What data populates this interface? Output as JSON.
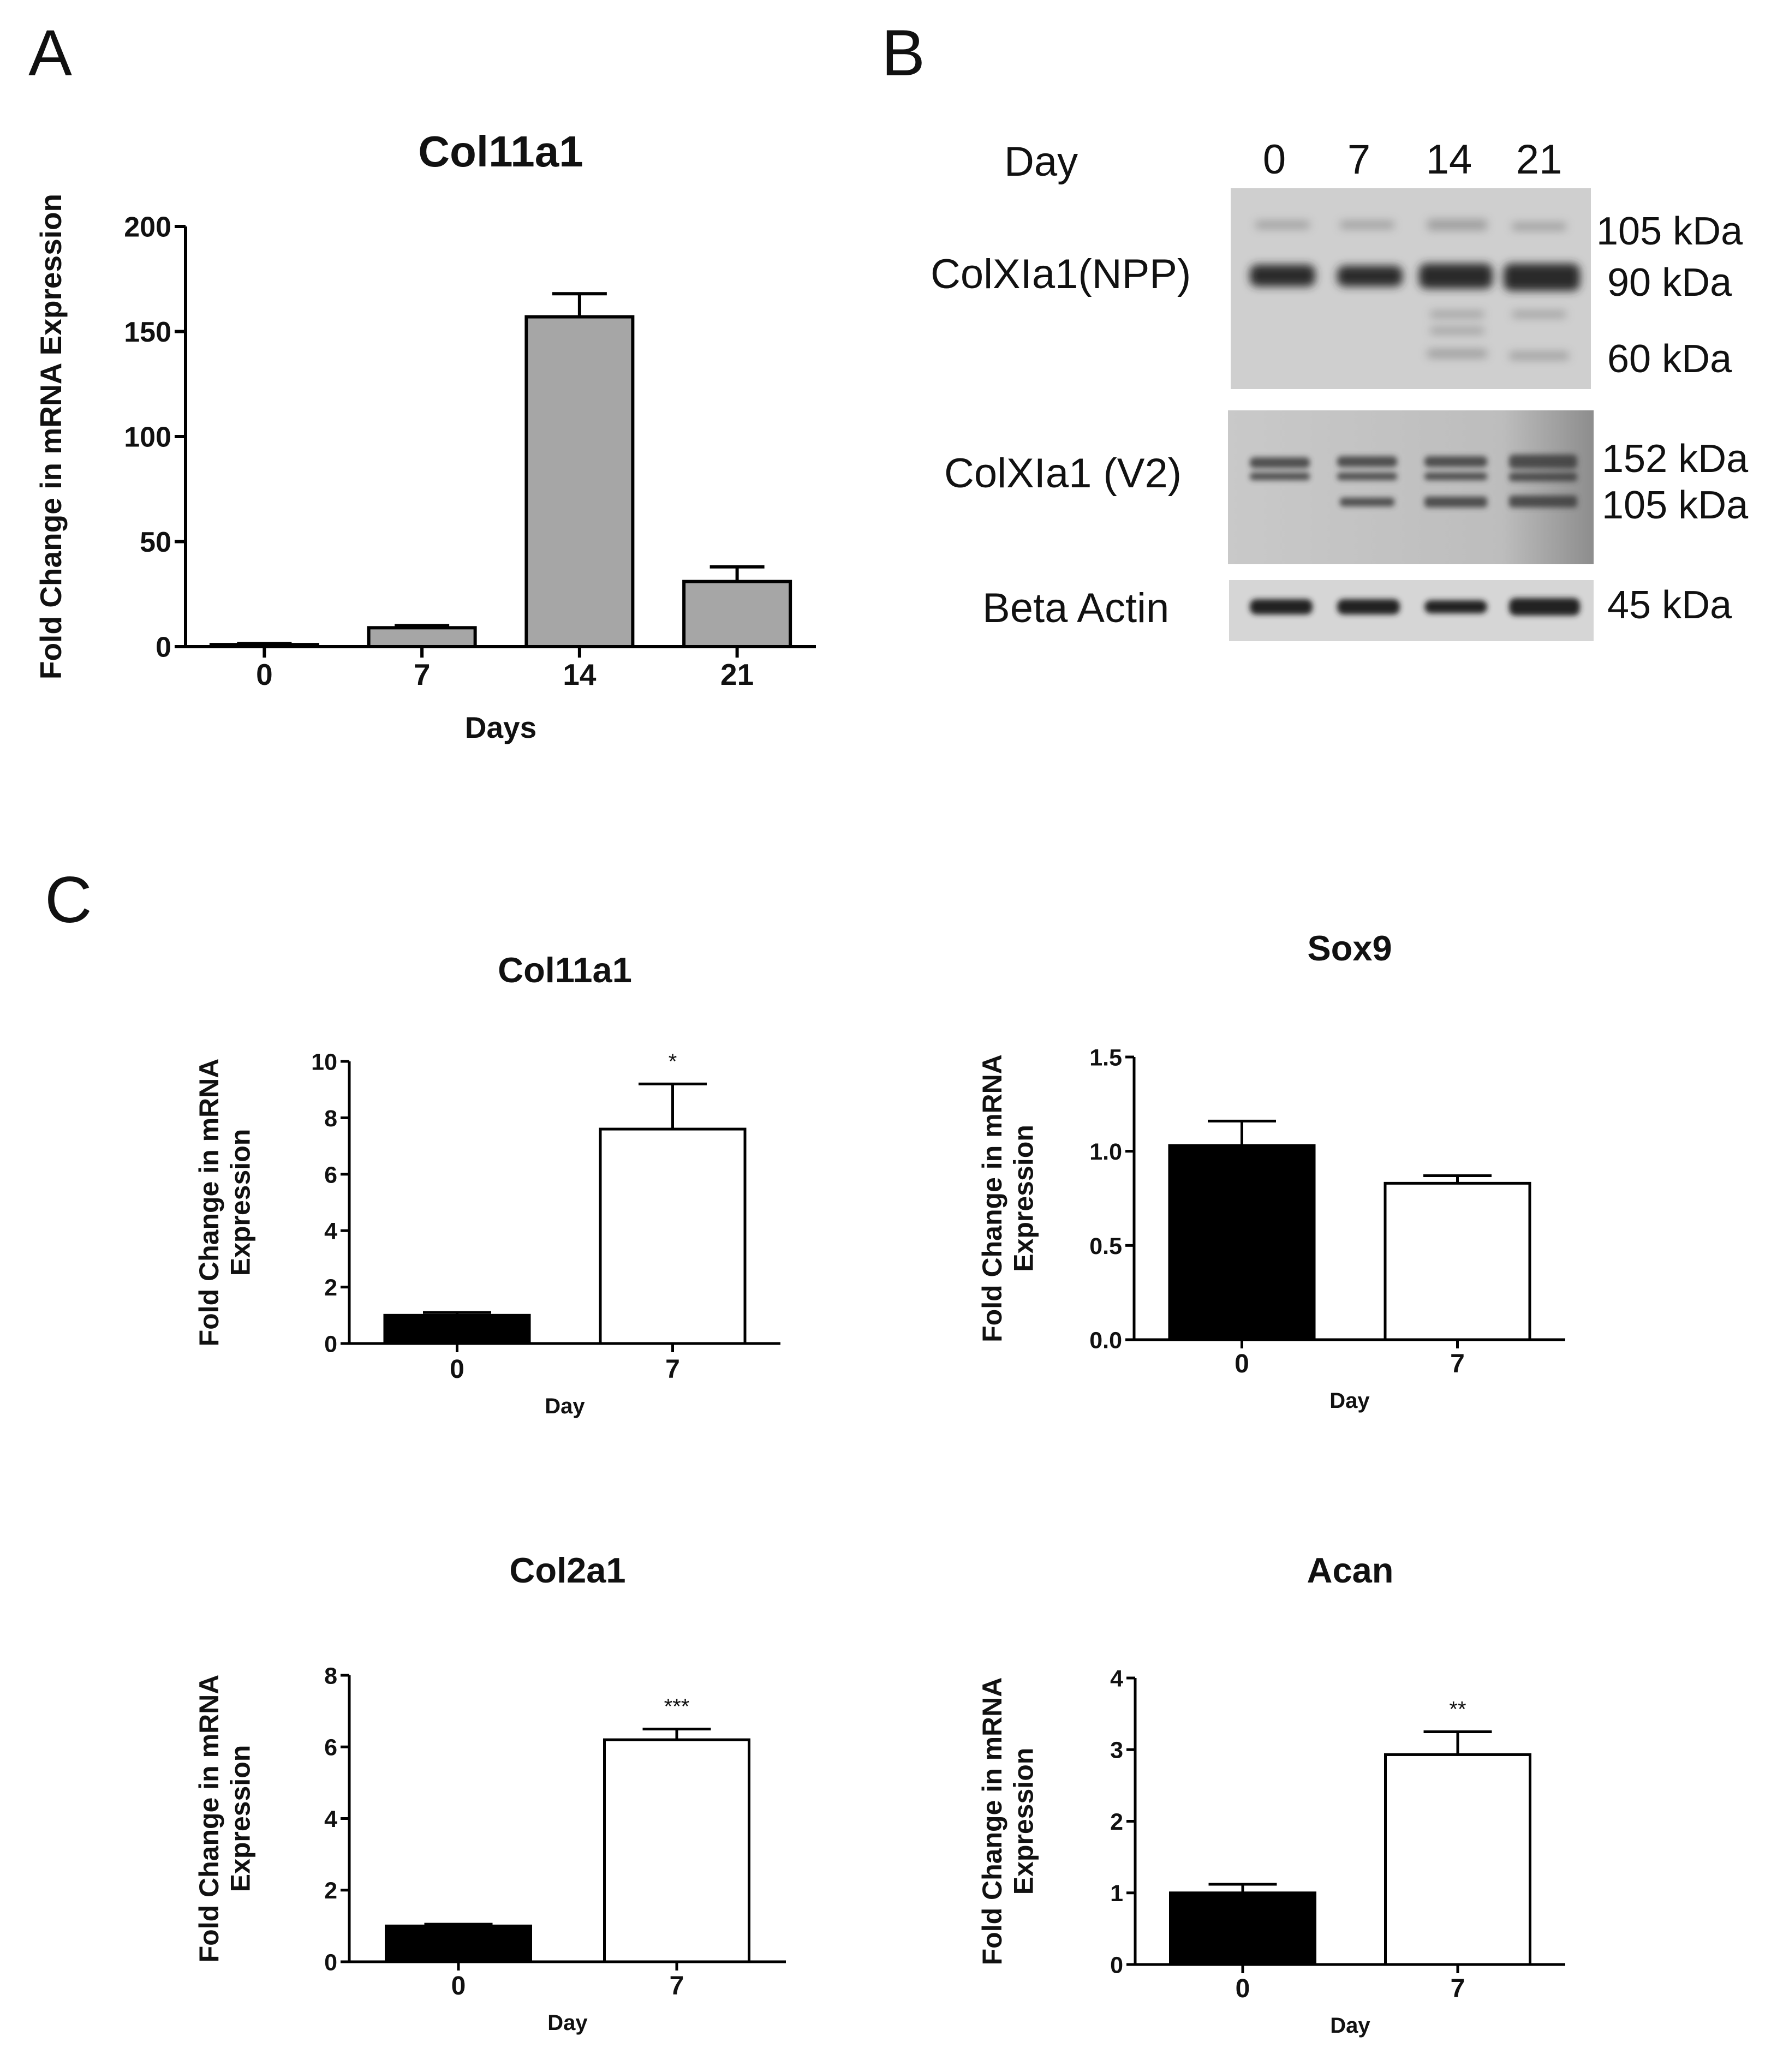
{
  "panels": {
    "A": {
      "letter": "A"
    },
    "B": {
      "letter": "B"
    },
    "C": {
      "letter": "C"
    }
  },
  "blot": {
    "day_header": "Day",
    "lanes": [
      "0",
      "7",
      "14",
      "21"
    ],
    "rows": [
      {
        "label": "ColXIa1(NPP)",
        "markers": [
          "105 kDa",
          "90 kDa",
          "60 kDa"
        ]
      },
      {
        "label": "ColXIa1 (V2)",
        "markers": [
          "152 kDa",
          "105 kDa"
        ]
      },
      {
        "label": "Beta Actin",
        "markers": [
          "45 kDa"
        ]
      }
    ]
  },
  "chart_data": [
    {
      "id": "A-col11a1",
      "type": "bar",
      "title": "Col11a1",
      "xlabel": "Days",
      "ylabel": "Fold Change in mRNA Expression",
      "categories": [
        "0",
        "7",
        "14",
        "21"
      ],
      "values": [
        1,
        9,
        157,
        31
      ],
      "errors": [
        0.5,
        1,
        11,
        7
      ],
      "ylim": [
        0,
        200
      ],
      "yticks": [
        "0",
        "50",
        "100",
        "150",
        "200"
      ],
      "bar_colors": [
        "#a6a6a6",
        "#a6a6a6",
        "#a6a6a6",
        "#a6a6a6"
      ],
      "annotations": [
        "",
        "",
        "",
        ""
      ]
    },
    {
      "id": "C-col11a1",
      "type": "bar",
      "title": "Col11a1",
      "xlabel": "Day",
      "ylabel": [
        "Fold Change in mRNA",
        "Expression"
      ],
      "categories": [
        "0",
        "7"
      ],
      "values": [
        1.0,
        7.6
      ],
      "errors": [
        0.1,
        1.6
      ],
      "ylim": [
        0,
        10
      ],
      "yticks": [
        "0",
        "2",
        "4",
        "6",
        "8",
        "10"
      ],
      "bar_colors": [
        "#000000",
        "#ffffff"
      ],
      "annotations": [
        "",
        "*"
      ]
    },
    {
      "id": "C-sox9",
      "type": "bar",
      "title": "Sox9",
      "xlabel": "Day",
      "ylabel": [
        "Fold Change in mRNA",
        "Expression"
      ],
      "categories": [
        "0",
        "7"
      ],
      "values": [
        1.03,
        0.83
      ],
      "errors": [
        0.13,
        0.04
      ],
      "ylim": [
        0,
        1.5
      ],
      "yticks": [
        "0.0",
        "0.5",
        "1.0",
        "1.5"
      ],
      "bar_colors": [
        "#000000",
        "#ffffff"
      ],
      "annotations": [
        "",
        ""
      ]
    },
    {
      "id": "C-col2a1",
      "type": "bar",
      "title": "Col2a1",
      "xlabel": "Day",
      "ylabel": [
        "Fold Change in mRNA",
        "Expression"
      ],
      "categories": [
        "0",
        "7"
      ],
      "values": [
        1.0,
        6.2
      ],
      "errors": [
        0.05,
        0.3
      ],
      "ylim": [
        0,
        8
      ],
      "yticks": [
        "0",
        "2",
        "4",
        "6",
        "8"
      ],
      "bar_colors": [
        "#000000",
        "#ffffff"
      ],
      "annotations": [
        "",
        "***"
      ]
    },
    {
      "id": "C-acan",
      "type": "bar",
      "title": "Acan",
      "xlabel": "Day",
      "ylabel": [
        "Fold Change in mRNA",
        "Expression"
      ],
      "categories": [
        "0",
        "7"
      ],
      "values": [
        1.0,
        2.93
      ],
      "errors": [
        0.12,
        0.32
      ],
      "ylim": [
        0,
        4
      ],
      "yticks": [
        "0",
        "1",
        "2",
        "3",
        "4"
      ],
      "bar_colors": [
        "#000000",
        "#ffffff"
      ],
      "annotations": [
        "",
        "**"
      ]
    }
  ]
}
